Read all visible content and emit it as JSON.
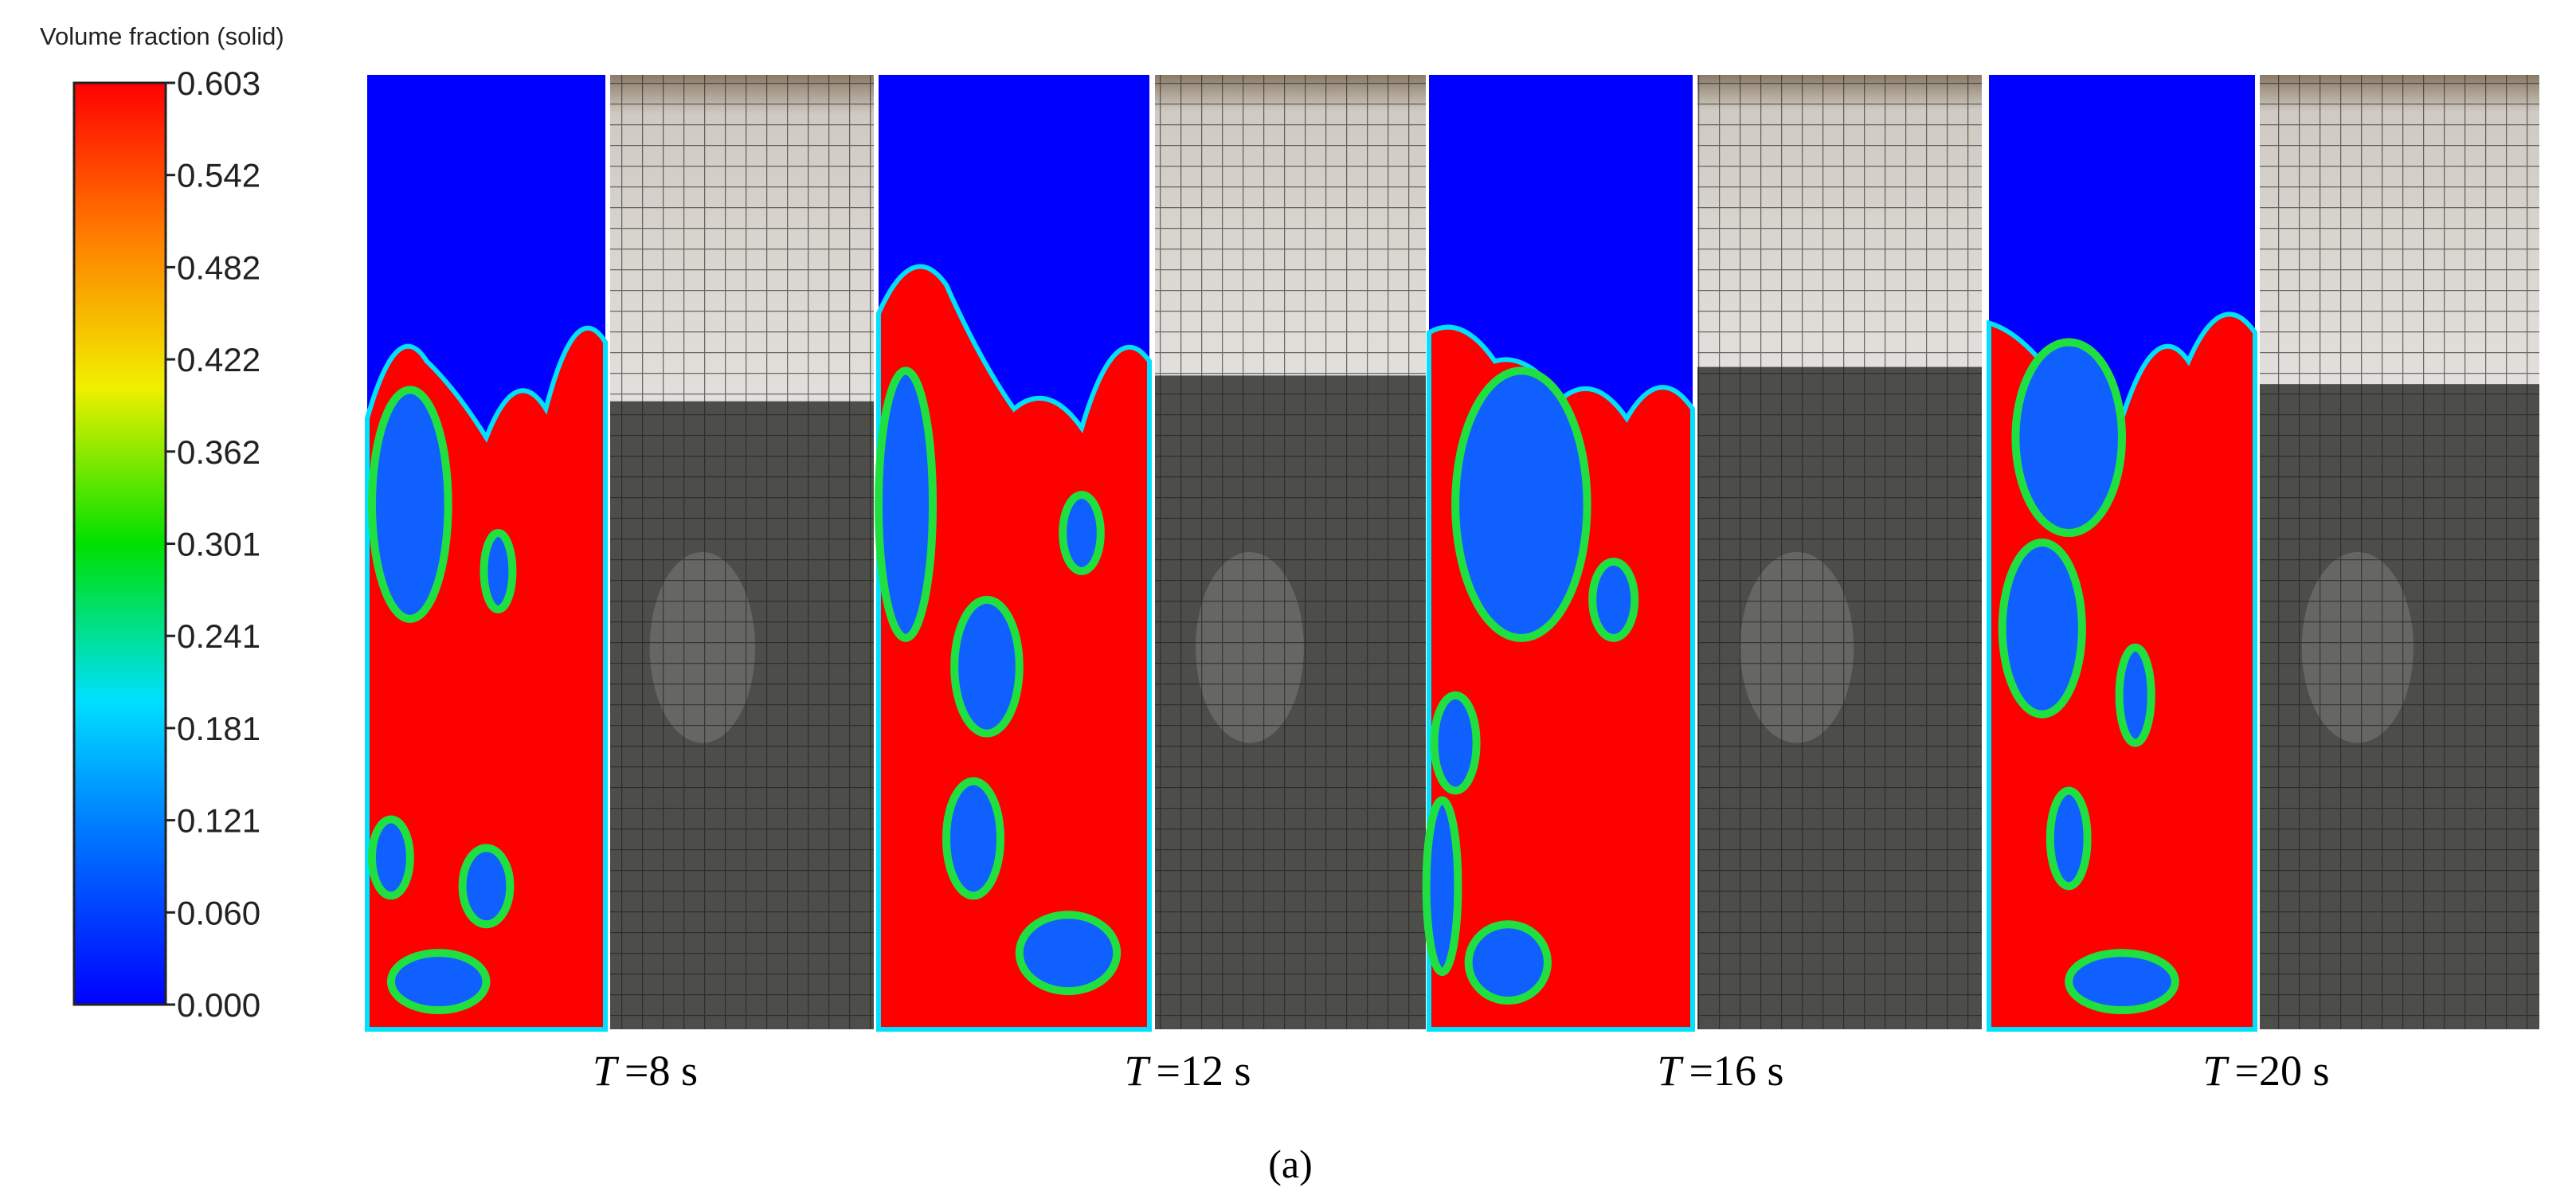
{
  "colorbar": {
    "title": "Volume fraction (solid)",
    "ticks": [
      "0.603",
      "0.542",
      "0.482",
      "0.422",
      "0.362",
      "0.301",
      "0.241",
      "0.181",
      "0.121",
      "0.060",
      "0.000"
    ]
  },
  "panels": [
    {
      "symbol": "T",
      "time": "=8 s"
    },
    {
      "symbol": "T",
      "time": "=12 s"
    },
    {
      "symbol": "T",
      "time": "=16 s"
    },
    {
      "symbol": "T",
      "time": "=20 s"
    }
  ],
  "caption": "(a)"
}
